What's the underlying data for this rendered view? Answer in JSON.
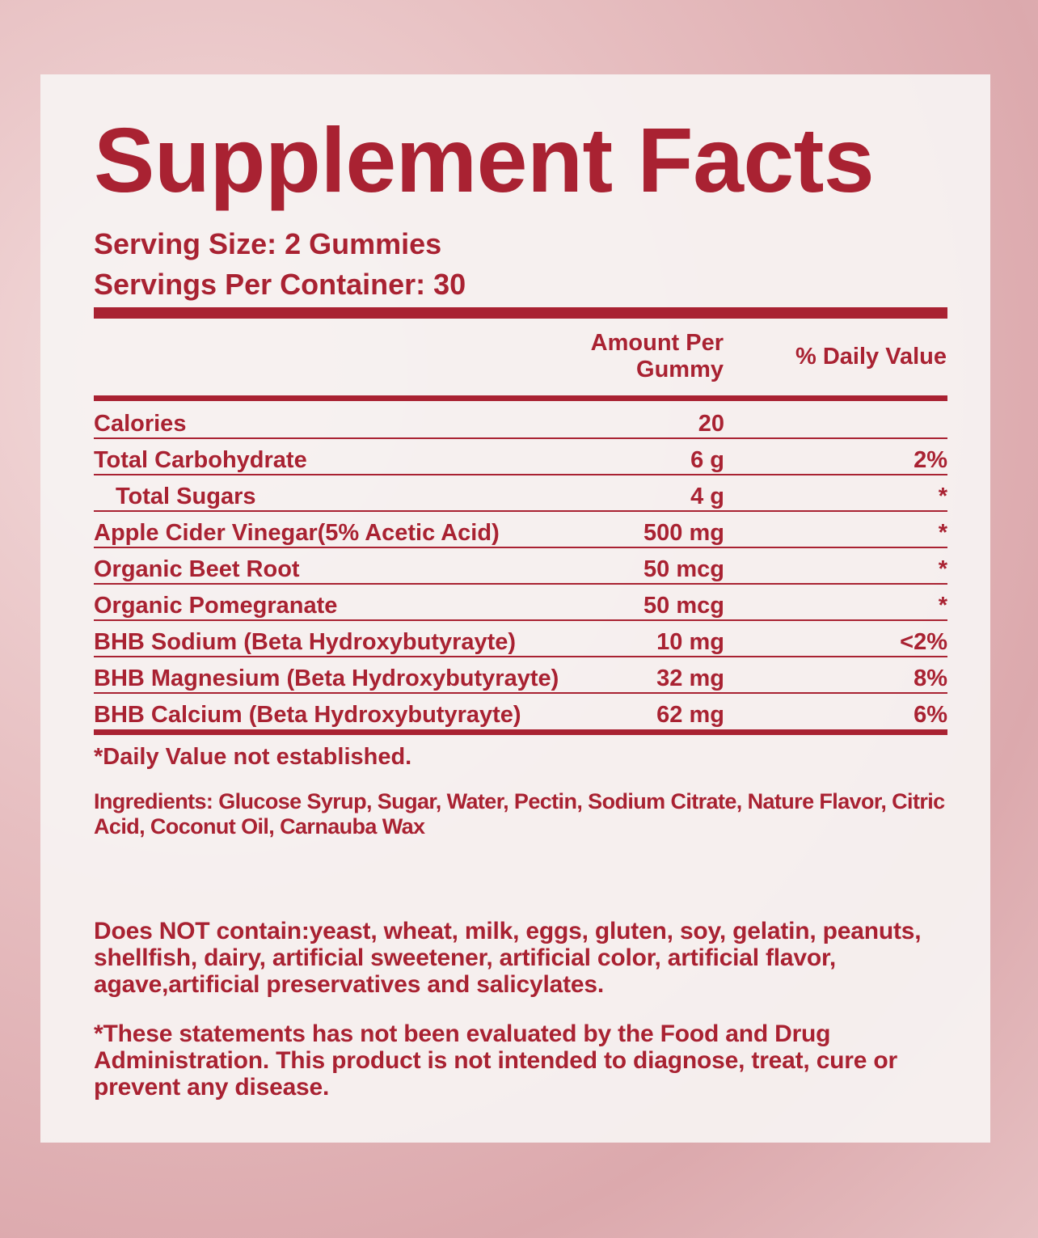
{
  "title": "Supplement Facts",
  "serving_size": "Serving Size: 2 Gummies",
  "servings_per_container": "Servings Per Container: 30",
  "columns": {
    "amount_line1": "Amount Per",
    "amount_line2": "Gummy",
    "daily_value": "% Daily Value"
  },
  "rows": [
    {
      "label": "Calories",
      "amount": "20",
      "dv": ""
    },
    {
      "label": "Total Carbohydrate",
      "amount": "6 g",
      "dv": "2%"
    },
    {
      "label": "Total Sugars",
      "amount": "4 g",
      "dv": "*"
    },
    {
      "label": "Apple Cider Vinegar(5% Acetic Acid)",
      "amount": "500 mg",
      "dv": "*"
    },
    {
      "label": "Organic Beet Root",
      "amount": "50 mcg",
      "dv": "*"
    },
    {
      "label": "Organic Pomegranate",
      "amount": "50 mcg",
      "dv": "*"
    },
    {
      "label": "BHB Sodium (Beta Hydroxybutyrayte)",
      "amount": "10 mg",
      "dv": "<2%"
    },
    {
      "label": "BHB Magnesium (Beta Hydroxybutyrayte)",
      "amount": "32 mg",
      "dv": "8%"
    },
    {
      "label": "BHB Calcium (Beta Hydroxybutyrayte)",
      "amount": "62 mg",
      "dv": "6%"
    }
  ],
  "footnote": "*Daily Value not established.",
  "ingredients": "Ingredients: Glucose Syrup, Sugar, Water, Pectin, Sodium Citrate, Nature Flavor, Citric Acid, Coconut Oil, Carnauba Wax",
  "does_not_contain": "Does NOT contain:yeast, wheat, milk, eggs, gluten, soy, gelatin, peanuts, shellfish, dairy, artificial sweetener, artificial color, artificial flavor, agave,artificial preservatives and salicylates.",
  "disclaimer": "*These statements has not been evaluated by the Food and Drug Administration. This product is not intended to diagnose, treat, cure or prevent any disease.",
  "colors": {
    "text": "#a92232",
    "panel": "#f7f2f1"
  }
}
